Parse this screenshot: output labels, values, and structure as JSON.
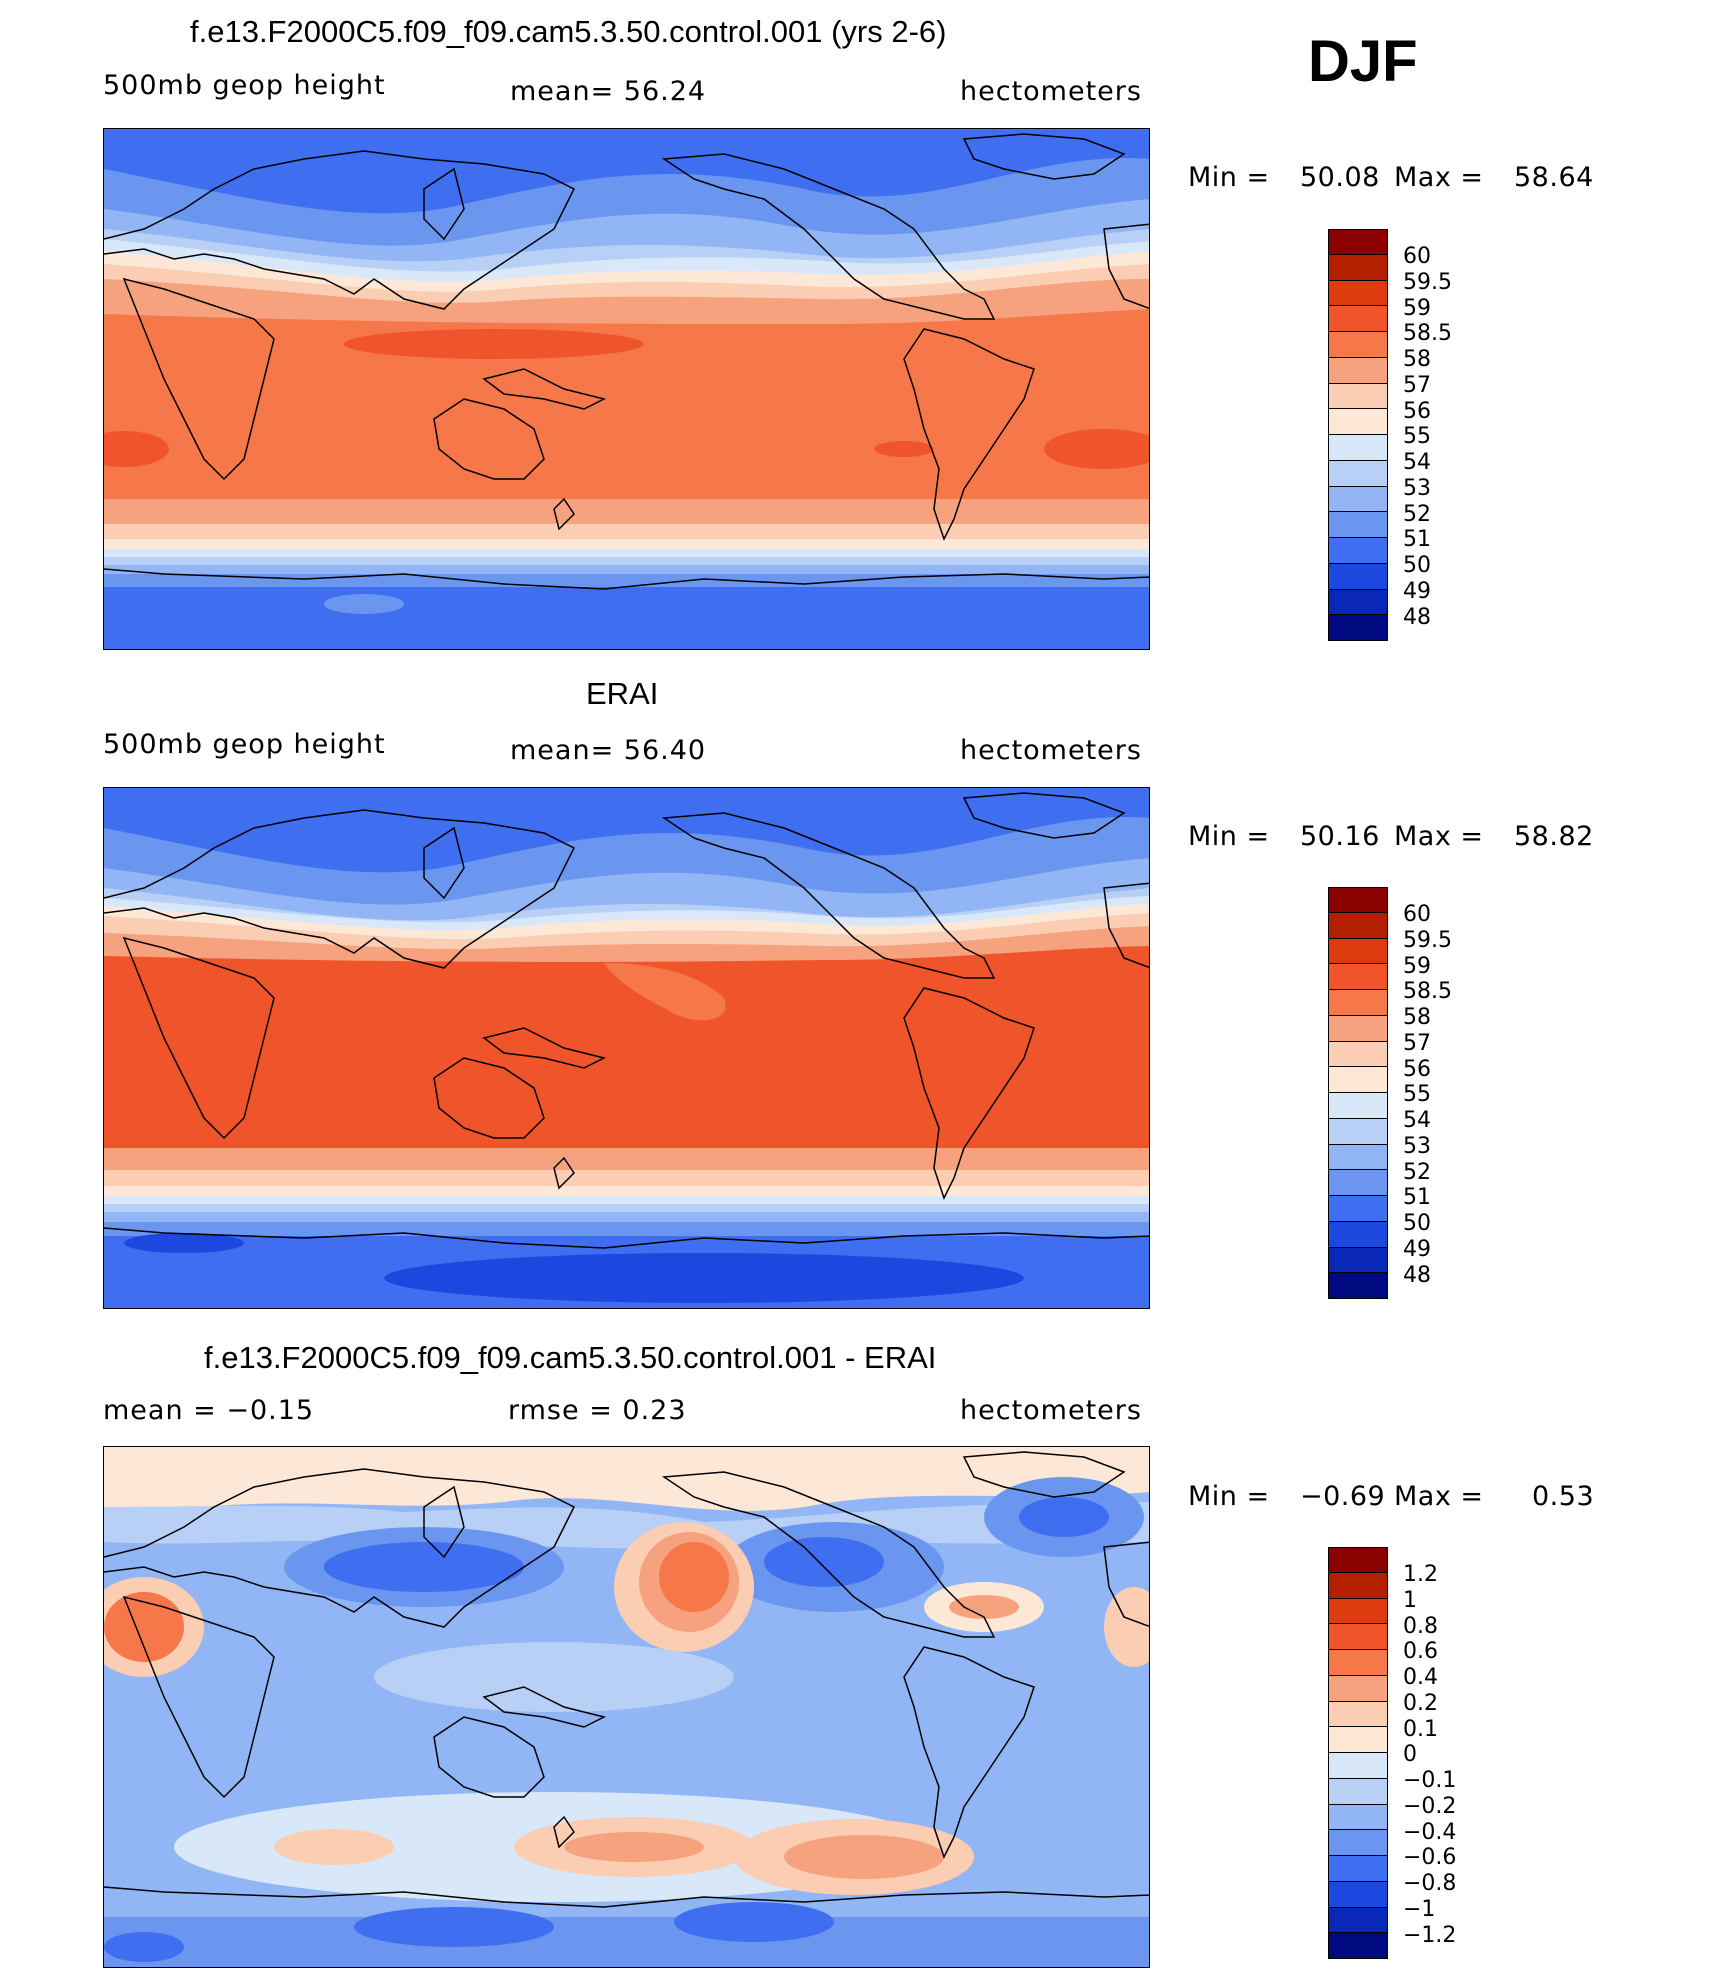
{
  "season": "DJF",
  "panels": [
    {
      "title": "f.e13.F2000C5.f09_f09.cam5.3.50.control.001 (yrs 2-6)",
      "left_label": "500mb  geop  height",
      "center_label": "mean=   56.24",
      "units": "hectometers",
      "min_label": "Min  =",
      "min_value": "50.08",
      "max_label": "Max  =",
      "max_value": "58.64",
      "legend_labels": [
        "60",
        "59.5",
        "59",
        "58.5",
        "58",
        "57",
        "56",
        "55",
        "54",
        "53",
        "52",
        "51",
        "50",
        "49",
        "48"
      ]
    },
    {
      "title": "ERAI",
      "left_label": "500mb  geop  height",
      "center_label": "mean=   56.40",
      "units": "hectometers",
      "min_label": "Min  =",
      "min_value": "50.16",
      "max_label": "Max  =",
      "max_value": "58.82",
      "legend_labels": [
        "60",
        "59.5",
        "59",
        "58.5",
        "58",
        "57",
        "56",
        "55",
        "54",
        "53",
        "52",
        "51",
        "50",
        "49",
        "48"
      ]
    },
    {
      "title": "f.e13.F2000C5.f09_f09.cam5.3.50.control.001 - ERAI",
      "left_label": "mean  =   −0.15",
      "center_label": "rmse  =     0.23",
      "units": "hectometers",
      "min_label": "Min  =",
      "min_value": "−0.69",
      "max_label": "Max  =",
      "max_value": "0.53",
      "legend_labels": [
        "1.2",
        "1",
        "0.8",
        "0.6",
        "0.4",
        "0.2",
        "0.1",
        "0",
        "−0.1",
        "−0.2",
        "−0.4",
        "−0.6",
        "−0.8",
        "−1",
        "−1.2"
      ]
    }
  ],
  "colors": {
    "abs_scale": [
      "#8b0000",
      "#b22000",
      "#dd3a10",
      "#f0542a",
      "#f5774a",
      "#f7a27e",
      "#fbcdb2",
      "#fde8d8",
      "#d8e8f8",
      "#b8d0f5",
      "#92b6f5",
      "#6a96f0",
      "#3f6ef0",
      "#1c48e0",
      "#0a28b8",
      "#000a80"
    ],
    "diff_scale": [
      "#8b0000",
      "#b22000",
      "#dd3a10",
      "#f0542a",
      "#f5774a",
      "#f7a27e",
      "#fbcdb2",
      "#fde8d8",
      "#d8e8f8",
      "#b8d0f5",
      "#92b6f5",
      "#6a96f0",
      "#3f6ef0",
      "#1c48e0",
      "#0a28b8",
      "#000a80"
    ]
  }
}
